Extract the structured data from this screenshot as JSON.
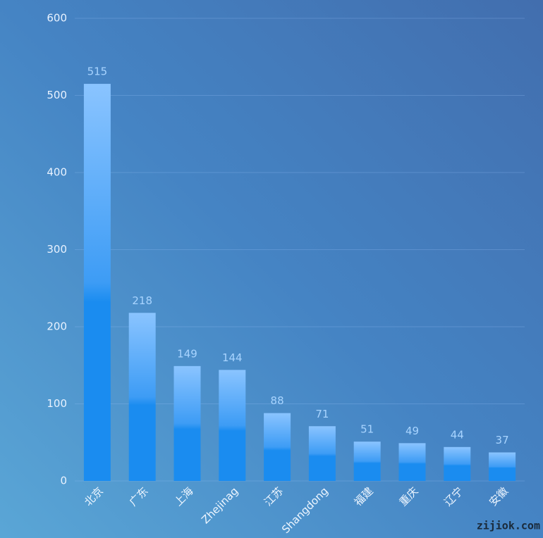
{
  "chart_data": {
    "type": "bar",
    "categories": [
      "北京",
      "广东",
      "上海",
      "Zhejinag",
      "江苏",
      "Shangdong",
      "福建",
      "重庆",
      "辽宁",
      "安徽"
    ],
    "values": [
      515,
      218,
      149,
      144,
      88,
      71,
      51,
      49,
      44,
      37
    ],
    "color": "#1a8cf0",
    "ylim": [
      0,
      600
    ],
    "yticks": [
      0,
      100,
      200,
      300,
      400,
      500,
      600
    ],
    "grid": true
  },
  "watermark": "zijiok.com"
}
